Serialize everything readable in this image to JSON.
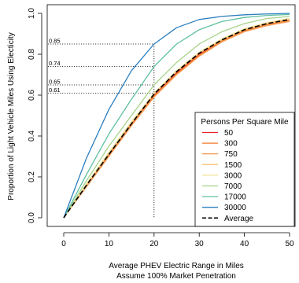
{
  "chart_data": {
    "type": "line",
    "title": "",
    "xlabel": "Average PHEV Electric Range in Miles",
    "xlabel_line2": "Assume 100% Market Penetration",
    "ylabel": "Proportion of Light Vehicle Miles Using Electicity",
    "xlim": [
      0,
      50
    ],
    "ylim": [
      0,
      1
    ],
    "xticks": [
      0,
      10,
      20,
      30,
      40,
      50
    ],
    "yticks": [
      0.0,
      0.2,
      0.4,
      0.6,
      0.8,
      1.0
    ],
    "xtick_labels": [
      "0",
      "10",
      "20",
      "30",
      "40",
      "50"
    ],
    "ytick_labels": [
      "0.0",
      "0.2",
      "0.4",
      "0.6",
      "0.8",
      "1.0"
    ],
    "grid": false,
    "x": [
      0,
      5,
      10,
      15,
      20,
      25,
      30,
      35,
      40,
      45,
      50
    ],
    "series": [
      {
        "name": "50",
        "color": "#e8202a",
        "dash": "solid",
        "values": [
          0,
          0.16,
          0.31,
          0.46,
          0.6,
          0.71,
          0.8,
          0.87,
          0.92,
          0.95,
          0.97
        ]
      },
      {
        "name": "300",
        "color": "#f4792b",
        "dash": "solid",
        "values": [
          0,
          0.155,
          0.305,
          0.455,
          0.595,
          0.705,
          0.795,
          0.865,
          0.915,
          0.945,
          0.965
        ]
      },
      {
        "name": "750",
        "color": "#f5a05a",
        "dash": "solid",
        "values": [
          0,
          0.15,
          0.3,
          0.45,
          0.59,
          0.7,
          0.79,
          0.86,
          0.91,
          0.94,
          0.96
        ]
      },
      {
        "name": "1500",
        "color": "#f7c77a",
        "dash": "solid",
        "values": [
          0,
          0.16,
          0.315,
          0.465,
          0.605,
          0.715,
          0.805,
          0.87,
          0.92,
          0.95,
          0.97
        ]
      },
      {
        "name": "3000",
        "color": "#f2e49a",
        "dash": "solid",
        "values": [
          0,
          0.165,
          0.32,
          0.47,
          0.61,
          0.72,
          0.81,
          0.875,
          0.925,
          0.955,
          0.975
        ]
      },
      {
        "name": "7000",
        "color": "#a6d38a",
        "dash": "solid",
        "values": [
          0,
          0.18,
          0.35,
          0.5,
          0.65,
          0.76,
          0.85,
          0.91,
          0.95,
          0.975,
          0.985
        ]
      },
      {
        "name": "17000",
        "color": "#5fbfa0",
        "dash": "solid",
        "values": [
          0,
          0.21,
          0.41,
          0.58,
          0.74,
          0.85,
          0.92,
          0.96,
          0.98,
          0.99,
          0.995
        ]
      },
      {
        "name": "30000",
        "color": "#2b7fbf",
        "dash": "solid",
        "values": [
          0,
          0.29,
          0.53,
          0.72,
          0.85,
          0.93,
          0.97,
          0.985,
          0.993,
          0.997,
          1.0
        ]
      },
      {
        "name": "Average",
        "color": "#000000",
        "dash": "dashed",
        "values": [
          0,
          0.158,
          0.31,
          0.46,
          0.605,
          0.715,
          0.805,
          0.87,
          0.92,
          0.95,
          0.97
        ]
      }
    ],
    "reference_lines": {
      "x_value": 20,
      "y_values": [
        0.85,
        0.74,
        0.65,
        0.61
      ],
      "y_labels": [
        "0.85",
        "0.74",
        "0.65",
        "0.61"
      ]
    },
    "legend": {
      "title": "Persons Per Square Mile",
      "placement": "bottom-right"
    }
  }
}
